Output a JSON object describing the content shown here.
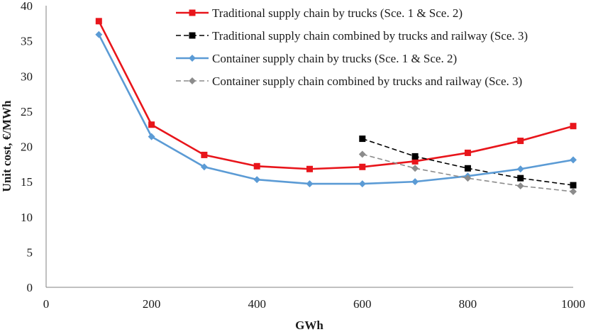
{
  "chart_data": {
    "type": "line",
    "title": "",
    "xlabel": "GWh",
    "ylabel": "Unit cost, €/MWh",
    "xlim": [
      0,
      1000
    ],
    "ylim": [
      0,
      40
    ],
    "xticks": [
      0,
      200,
      400,
      600,
      800,
      1000
    ],
    "yticks": [
      0,
      5,
      10,
      15,
      20,
      25,
      30,
      35,
      40
    ],
    "grid": false,
    "legend_position": "top-right",
    "series": [
      {
        "name": "Traditional supply chain by trucks (Sce. 1 & Sce. 2)",
        "color": "#e8151b",
        "line_style": "solid",
        "marker": "square",
        "x": [
          100,
          200,
          300,
          400,
          500,
          600,
          700,
          800,
          900,
          1000
        ],
        "y": [
          37.8,
          23.1,
          18.8,
          17.2,
          16.8,
          17.1,
          17.9,
          19.1,
          20.8,
          22.9
        ]
      },
      {
        "name": "Traditional supply chain combined by trucks and railway (Sce. 3)",
        "color": "#000000",
        "line_style": "dashed",
        "marker": "square",
        "x": [
          600,
          700,
          800,
          900,
          1000
        ],
        "y": [
          21.1,
          18.6,
          16.9,
          15.5,
          14.5
        ]
      },
      {
        "name": "Container supply chain by trucks (Sce. 1 & Sce. 2)",
        "color": "#5b9bd5",
        "line_style": "solid",
        "marker": "diamond",
        "x": [
          100,
          200,
          300,
          400,
          500,
          600,
          700,
          800,
          900,
          1000
        ],
        "y": [
          35.9,
          21.4,
          17.1,
          15.3,
          14.7,
          14.7,
          15.0,
          15.8,
          16.8,
          18.1
        ]
      },
      {
        "name": "Container supply chain combined by trucks and railway (Sce. 3)",
        "color": "#8c8c8c",
        "line_style": "dashed",
        "marker": "diamond",
        "x": [
          600,
          700,
          800,
          900,
          1000
        ],
        "y": [
          18.9,
          16.9,
          15.5,
          14.4,
          13.6
        ]
      }
    ]
  }
}
